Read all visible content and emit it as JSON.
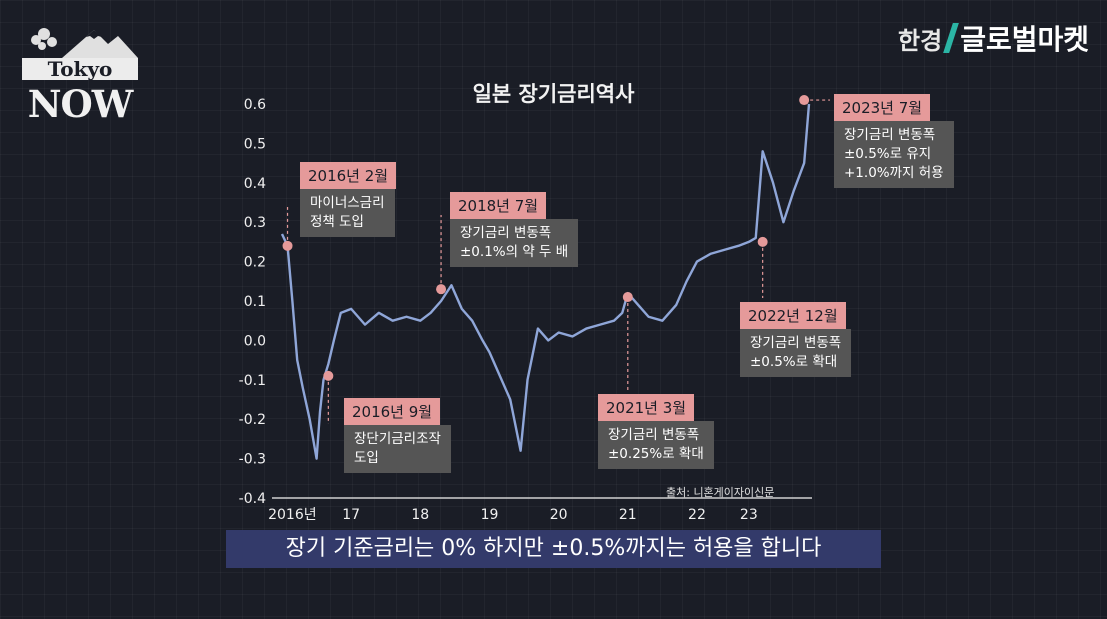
{
  "logo": {
    "tokyo": "Tokyo",
    "now": "NOW"
  },
  "brand": {
    "a": "한경",
    "b": "글로벌마켓"
  },
  "chart_data": {
    "type": "line",
    "title": "일본 장기금리역사",
    "ylim": [
      -0.4,
      0.6
    ],
    "yticks": [
      "0.6",
      "0.5",
      "0.4",
      "0.3",
      "0.2",
      "0.1",
      "0.0",
      "-0.1",
      "-0.2",
      "-0.3",
      "-0.4"
    ],
    "xticks": [
      "2016년",
      "17",
      "18",
      "19",
      "20",
      "21",
      "22",
      "23"
    ],
    "source": "출처: 니혼게이자이신문",
    "series": [
      {
        "x": [
          2016.0,
          2016.08,
          2016.15,
          2016.22,
          2016.3,
          2016.4,
          2016.5,
          2016.55,
          2016.6,
          2016.67,
          2016.75,
          2016.85,
          2017.0,
          2017.2,
          2017.4,
          2017.6,
          2017.8,
          2018.0,
          2018.15,
          2018.3,
          2018.45,
          2018.6,
          2018.75,
          2018.9,
          2019.0,
          2019.15,
          2019.3,
          2019.45,
          2019.55,
          2019.7,
          2019.85,
          2020.0,
          2020.2,
          2020.4,
          2020.6,
          2020.8,
          2020.92,
          2021.0,
          2021.15,
          2021.3,
          2021.5,
          2021.7,
          2021.85,
          2022.0,
          2022.2,
          2022.4,
          2022.6,
          2022.75,
          2022.85,
          2022.95,
          2023.1,
          2023.25,
          2023.4,
          2023.55,
          2023.62
        ],
        "y": [
          0.27,
          0.24,
          0.1,
          -0.05,
          -0.12,
          -0.2,
          -0.3,
          -0.18,
          -0.1,
          -0.06,
          0.0,
          0.07,
          0.08,
          0.04,
          0.07,
          0.05,
          0.06,
          0.05,
          0.07,
          0.1,
          0.14,
          0.08,
          0.05,
          0.0,
          -0.03,
          -0.09,
          -0.15,
          -0.28,
          -0.1,
          0.03,
          0.0,
          0.02,
          0.01,
          0.03,
          0.04,
          0.05,
          0.07,
          0.12,
          0.09,
          0.06,
          0.05,
          0.09,
          0.15,
          0.2,
          0.22,
          0.23,
          0.24,
          0.25,
          0.26,
          0.48,
          0.4,
          0.3,
          0.38,
          0.45,
          0.6
        ]
      }
    ],
    "markers": [
      {
        "x": 2016.08,
        "y": 0.24
      },
      {
        "x": 2016.67,
        "y": -0.09
      },
      {
        "x": 2018.3,
        "y": 0.13
      },
      {
        "x": 2021.0,
        "y": 0.11
      },
      {
        "x": 2022.95,
        "y": 0.25
      },
      {
        "x": 2023.55,
        "y": 0.61
      }
    ]
  },
  "annotations": [
    {
      "date": "2016년 2월",
      "text": "마이너스금리\n정책 도입"
    },
    {
      "date": "2016년 9월",
      "text": "장단기금리조작\n도입"
    },
    {
      "date": "2018년 7월",
      "text": "장기금리 변동폭\n±0.1%의 약 두 배"
    },
    {
      "date": "2021년 3월",
      "text": "장기금리 변동폭\n±0.25%로 확대"
    },
    {
      "date": "2022년 12월",
      "text": "장기금리 변동폭\n±0.5%로 확대"
    },
    {
      "date": "2023년 7월",
      "text": "장기금리 변동폭\n±0.5%로 유지\n+1.0%까지 허용"
    }
  ],
  "subtitle": "장기 기준금리는 0% 하지만 ±0.5%까지는 허용을 합니다",
  "colors": {
    "line": "#8fa6d8",
    "marker": "#e59a9a",
    "label_bg": "#555555",
    "subtitle_bg": "#333a6a"
  }
}
